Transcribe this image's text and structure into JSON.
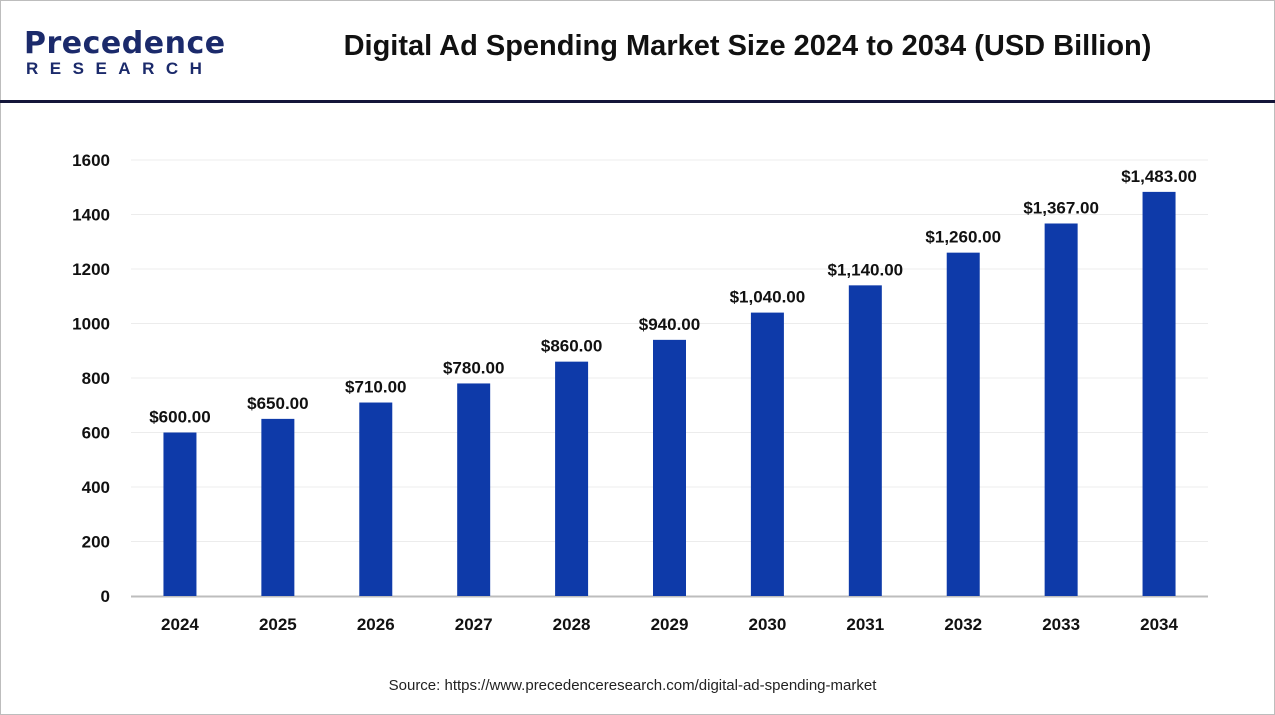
{
  "header": {
    "logo_text": "Precedence",
    "logo_subtext": "RESEARCH",
    "title": "Digital Ad Spending Market Size 2024 to 2034 (USD Billion)"
  },
  "source": "Source: https://www.precedenceresearch.com/digital-ad-spending-market",
  "chart_data": {
    "type": "bar",
    "title": "Digital Ad Spending Market Size 2024 to 2034 (USD Billion)",
    "categories": [
      "2024",
      "2025",
      "2026",
      "2027",
      "2028",
      "2029",
      "2030",
      "2031",
      "2032",
      "2033",
      "2034"
    ],
    "values": [
      600,
      650,
      710,
      780,
      860,
      940,
      1040,
      1140,
      1260,
      1367,
      1483
    ],
    "data_labels": [
      "$600.00",
      "$650.00",
      "$710.00",
      "$780.00",
      "$860.00",
      "$940.00",
      "$1,040.00",
      "$1,140.00",
      "$1,260.00",
      "$1,367.00",
      "$1,483.00"
    ],
    "yticks": [
      0,
      200,
      400,
      600,
      800,
      1000,
      1200,
      1400,
      1600
    ],
    "ylim": [
      0,
      1600
    ],
    "xlabel": "",
    "ylabel": "",
    "grid": true,
    "legend": "none",
    "bar_color": "#0e3aa9"
  }
}
